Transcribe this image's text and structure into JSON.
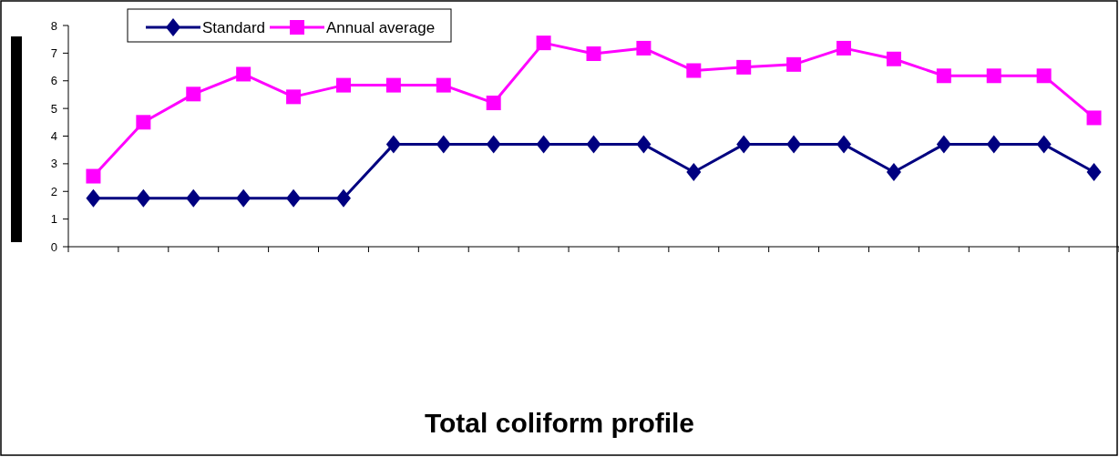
{
  "chart_data": {
    "type": "line",
    "title": "Total coliform profile",
    "categories": [
      null,
      null,
      null,
      null,
      null,
      null,
      null,
      null,
      null,
      null,
      null,
      null,
      null,
      null,
      null,
      null,
      null,
      null,
      null,
      null,
      null
    ],
    "series": [
      {
        "name": "Standard",
        "color": "#000080",
        "marker": "diamond",
        "values": [
          1.75,
          1.75,
          1.75,
          1.75,
          1.75,
          1.75,
          3.7,
          3.7,
          3.7,
          3.7,
          3.7,
          3.7,
          2.7,
          3.7,
          3.7,
          3.7,
          2.7,
          3.7,
          3.7,
          3.7,
          2.7
        ]
      },
      {
        "name": "Annual average",
        "color": "#ff00ff",
        "marker": "square",
        "values": [
          2.55,
          4.5,
          5.52,
          6.24,
          5.42,
          5.84,
          5.84,
          5.84,
          5.2,
          7.37,
          6.98,
          7.18,
          6.37,
          6.49,
          6.59,
          7.18,
          6.79,
          6.18,
          6.18,
          6.18,
          4.66
        ]
      }
    ],
    "ylim": [
      0,
      8
    ],
    "yticks": [
      0,
      1,
      2,
      3,
      4,
      5,
      6,
      7,
      8
    ],
    "grid": false,
    "legend": "top left",
    "line_style": "solid"
  }
}
